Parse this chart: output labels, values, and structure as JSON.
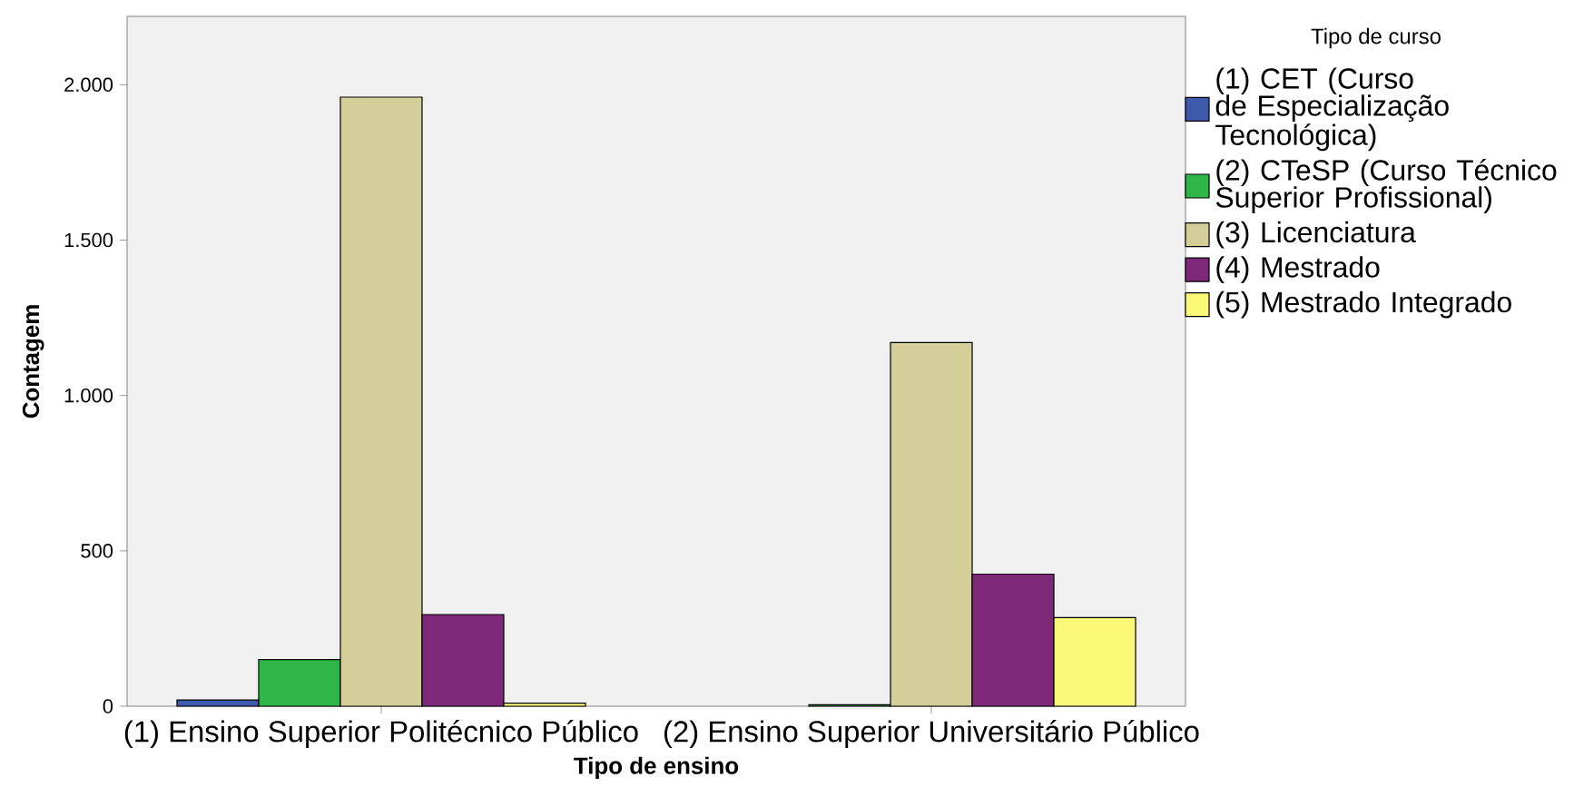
{
  "chart_data": {
    "type": "bar",
    "xlabel": "Tipo de ensino",
    "ylabel": "Contagem",
    "legend_title": "Tipo de curso",
    "categories": [
      "(1) Ensino Superior Politécnico Público",
      "(2) Ensino Superior Universitário Público"
    ],
    "series": [
      {
        "name": "(1) CET (Curso de Especialização Tecnológica)",
        "color": "#3e58ac",
        "values": [
          20,
          null
        ]
      },
      {
        "name": "(2) CTeSP (Curso Técnico Superior Profissional)",
        "color": "#2eb748",
        "values": [
          150,
          5
        ]
      },
      {
        "name": "(3) Licenciatura",
        "color": "#d4ce98",
        "values": [
          1960,
          1170
        ]
      },
      {
        "name": "(4) Mestrado",
        "color": "#7d2878",
        "values": [
          295,
          425
        ]
      },
      {
        "name": "(5) Mestrado Integrado",
        "color": "#fbf778",
        "values": [
          10,
          285
        ]
      }
    ],
    "ylim": [
      0,
      2220
    ],
    "yticks": [
      0,
      {
        "value": 500,
        "label": "500"
      },
      {
        "value": 1000,
        "label": "1.000"
      },
      {
        "value": 1500,
        "label": "1.500"
      },
      {
        "value": 2000,
        "label": "2.000"
      }
    ],
    "legend": "right"
  }
}
